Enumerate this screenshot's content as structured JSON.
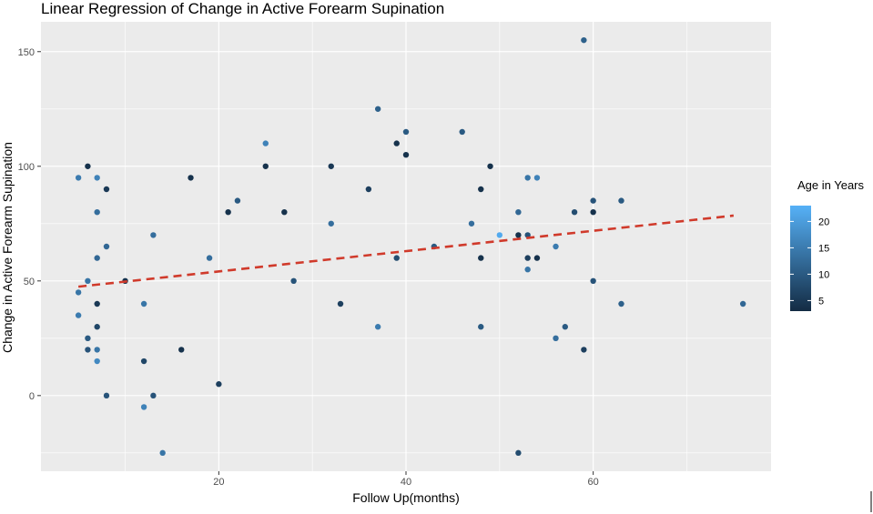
{
  "chart_data": {
    "type": "scatter",
    "title": "Linear Regression of Change in Active Forearm Supination",
    "xlabel": "Follow Up(months)",
    "ylabel": "Change in Active Forearm Supination",
    "xlim": [
      1,
      79
    ],
    "ylim": [
      -33,
      163
    ],
    "x_ticks": [
      20,
      40,
      60
    ],
    "y_ticks": [
      0,
      50,
      100,
      150
    ],
    "grid": true,
    "legend": {
      "title": "Age in Years",
      "placement": "right",
      "ticks": [
        5,
        10,
        15,
        20
      ],
      "range": [
        3,
        23
      ],
      "color_low": "#132B43",
      "color_high": "#56B1F7"
    },
    "regression_line": {
      "x": [
        5,
        75
      ],
      "y": [
        47.5,
        78.5
      ],
      "color": "#d03a2b",
      "style": "dashed"
    },
    "points": [
      {
        "x": 5,
        "y": 95,
        "age": 15
      },
      {
        "x": 5,
        "y": 45,
        "age": 14
      },
      {
        "x": 5,
        "y": 35,
        "age": 15
      },
      {
        "x": 6,
        "y": 100,
        "age": 4
      },
      {
        "x": 6,
        "y": 50,
        "age": 14
      },
      {
        "x": 6,
        "y": 25,
        "age": 10
      },
      {
        "x": 6,
        "y": 20,
        "age": 9
      },
      {
        "x": 7,
        "y": 95,
        "age": 16
      },
      {
        "x": 7,
        "y": 80,
        "age": 13
      },
      {
        "x": 7,
        "y": 60,
        "age": 12
      },
      {
        "x": 7,
        "y": 40,
        "age": 5
      },
      {
        "x": 7,
        "y": 30,
        "age": 7
      },
      {
        "x": 7,
        "y": 20,
        "age": 14
      },
      {
        "x": 7,
        "y": 15,
        "age": 17
      },
      {
        "x": 8,
        "y": 90,
        "age": 5
      },
      {
        "x": 8,
        "y": 65,
        "age": 12
      },
      {
        "x": 8,
        "y": 0,
        "age": 9
      },
      {
        "x": 10,
        "y": 50,
        "age": 4
      },
      {
        "x": 12,
        "y": 40,
        "age": 14
      },
      {
        "x": 12,
        "y": 15,
        "age": 7
      },
      {
        "x": 12,
        "y": -5,
        "age": 16
      },
      {
        "x": 13,
        "y": 70,
        "age": 13
      },
      {
        "x": 13,
        "y": 0,
        "age": 9
      },
      {
        "x": 14,
        "y": -25,
        "age": 14
      },
      {
        "x": 16,
        "y": 20,
        "age": 4
      },
      {
        "x": 17,
        "y": 95,
        "age": 4
      },
      {
        "x": 19,
        "y": 60,
        "age": 13
      },
      {
        "x": 20,
        "y": 5,
        "age": 6
      },
      {
        "x": 21,
        "y": 80,
        "age": 4
      },
      {
        "x": 22,
        "y": 85,
        "age": 10
      },
      {
        "x": 25,
        "y": 110,
        "age": 16
      },
      {
        "x": 25,
        "y": 100,
        "age": 4
      },
      {
        "x": 27,
        "y": 80,
        "age": 4
      },
      {
        "x": 28,
        "y": 50,
        "age": 9
      },
      {
        "x": 32,
        "y": 100,
        "age": 5
      },
      {
        "x": 32,
        "y": 75,
        "age": 13
      },
      {
        "x": 33,
        "y": 40,
        "age": 6
      },
      {
        "x": 36,
        "y": 90,
        "age": 6
      },
      {
        "x": 37,
        "y": 125,
        "age": 11
      },
      {
        "x": 37,
        "y": 30,
        "age": 15
      },
      {
        "x": 39,
        "y": 110,
        "age": 4
      },
      {
        "x": 39,
        "y": 60,
        "age": 8
      },
      {
        "x": 40,
        "y": 115,
        "age": 10
      },
      {
        "x": 40,
        "y": 105,
        "age": 4
      },
      {
        "x": 43,
        "y": 65,
        "age": 10
      },
      {
        "x": 46,
        "y": 115,
        "age": 10
      },
      {
        "x": 47,
        "y": 75,
        "age": 13
      },
      {
        "x": 48,
        "y": 90,
        "age": 4
      },
      {
        "x": 48,
        "y": 60,
        "age": 4
      },
      {
        "x": 48,
        "y": 30,
        "age": 10
      },
      {
        "x": 49,
        "y": 100,
        "age": 4
      },
      {
        "x": 50,
        "y": 70,
        "age": 22
      },
      {
        "x": 52,
        "y": 80,
        "age": 12
      },
      {
        "x": 52,
        "y": 70,
        "age": 4
      },
      {
        "x": 52,
        "y": -25,
        "age": 8
      },
      {
        "x": 53,
        "y": 95,
        "age": 14
      },
      {
        "x": 53,
        "y": 70,
        "age": 9
      },
      {
        "x": 53,
        "y": 60,
        "age": 6
      },
      {
        "x": 53,
        "y": 55,
        "age": 14
      },
      {
        "x": 54,
        "y": 95,
        "age": 16
      },
      {
        "x": 54,
        "y": 60,
        "age": 4
      },
      {
        "x": 56,
        "y": 65,
        "age": 15
      },
      {
        "x": 56,
        "y": 25,
        "age": 13
      },
      {
        "x": 57,
        "y": 30,
        "age": 10
      },
      {
        "x": 58,
        "y": 80,
        "age": 8
      },
      {
        "x": 59,
        "y": 155,
        "age": 11
      },
      {
        "x": 59,
        "y": 20,
        "age": 6
      },
      {
        "x": 60,
        "y": 85,
        "age": 9
      },
      {
        "x": 60,
        "y": 80,
        "age": 4
      },
      {
        "x": 60,
        "y": 50,
        "age": 9
      },
      {
        "x": 63,
        "y": 85,
        "age": 10
      },
      {
        "x": 63,
        "y": 40,
        "age": 11
      },
      {
        "x": 76,
        "y": 40,
        "age": 12
      }
    ]
  }
}
